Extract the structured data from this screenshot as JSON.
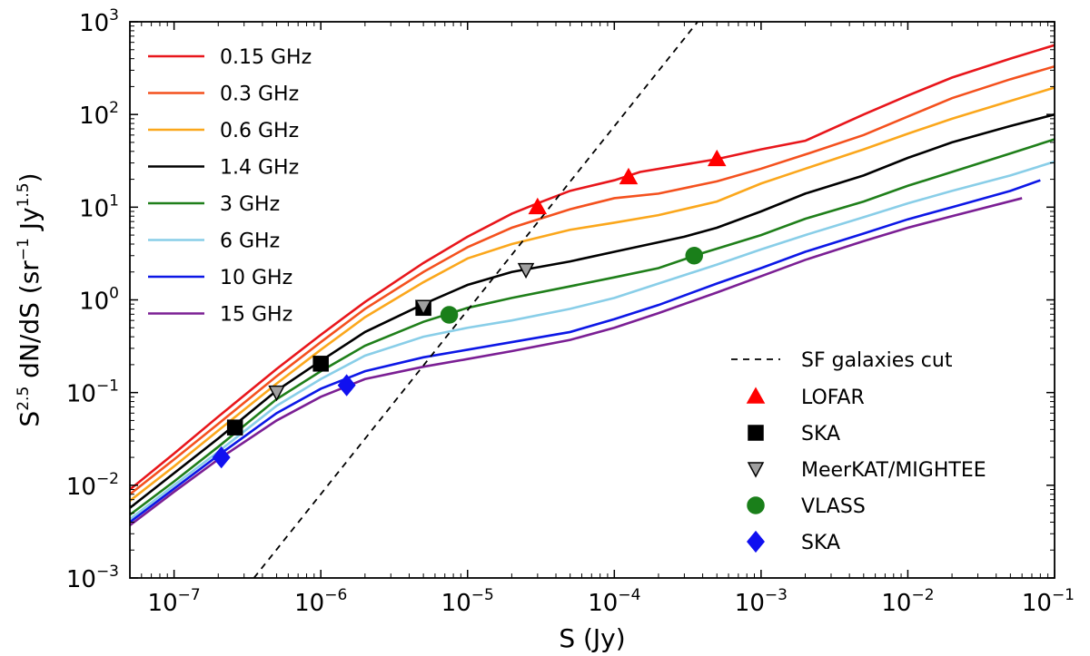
{
  "chart_data": {
    "type": "line",
    "scale": {
      "x": "log",
      "y": "log"
    },
    "xlabel": "S (Jy)",
    "ylabel": {
      "prefix": "S",
      "prefix_exp": "2.5",
      "mid": " dN/dS (sr",
      "unit_exp1": "−1",
      "mid2": " Jy",
      "unit_exp2": "1.5",
      "suffix": ")"
    },
    "xlim": [
      5e-08,
      0.1
    ],
    "ylim": [
      0.001,
      1000
    ],
    "x_ticks": [
      {
        "value": 1e-07,
        "base": "10",
        "exp": "−7"
      },
      {
        "value": 1e-06,
        "base": "10",
        "exp": "−6"
      },
      {
        "value": 1e-05,
        "base": "10",
        "exp": "−5"
      },
      {
        "value": 0.0001,
        "base": "10",
        "exp": "−4"
      },
      {
        "value": 0.001,
        "base": "10",
        "exp": "−3"
      },
      {
        "value": 0.01,
        "base": "10",
        "exp": "−2"
      },
      {
        "value": 0.1,
        "base": "10",
        "exp": "−1"
      }
    ],
    "y_ticks": [
      {
        "value": 0.001,
        "base": "10",
        "exp": "−3"
      },
      {
        "value": 0.01,
        "base": "10",
        "exp": "−2"
      },
      {
        "value": 0.1,
        "base": "10",
        "exp": "−1"
      },
      {
        "value": 1,
        "base": "10",
        "exp": "0"
      },
      {
        "value": 10,
        "base": "10",
        "exp": "1"
      },
      {
        "value": 100,
        "base": "10",
        "exp": "2"
      },
      {
        "value": 1000,
        "base": "10",
        "exp": "3"
      }
    ],
    "series": [
      {
        "name": "0.15 GHz",
        "color": "#e8161b",
        "x": [
          5e-08,
          1e-07,
          2e-07,
          5e-07,
          1e-06,
          2e-06,
          5e-06,
          1e-05,
          2e-05,
          3e-05,
          5e-05,
          0.0001,
          0.00015,
          0.0005,
          0.001,
          0.002,
          0.005,
          0.01,
          0.02,
          0.05,
          0.1
        ],
        "y": [
          0.009,
          0.022,
          0.055,
          0.18,
          0.42,
          0.95,
          2.5,
          4.8,
          8.5,
          11,
          15,
          19.5,
          24,
          33,
          42,
          52,
          100,
          160,
          250,
          400,
          560
        ]
      },
      {
        "name": "0.3 GHz",
        "color": "#f4511e",
        "x": [
          5e-08,
          1e-07,
          2e-07,
          5e-07,
          1e-06,
          2e-06,
          5e-06,
          1e-05,
          2e-05,
          5e-05,
          0.0001,
          0.0002,
          0.0005,
          0.001,
          0.002,
          0.005,
          0.01,
          0.02,
          0.05,
          0.1
        ],
        "y": [
          0.008,
          0.019,
          0.046,
          0.15,
          0.35,
          0.8,
          2.0,
          3.7,
          6.0,
          9.5,
          12.5,
          14,
          19,
          26,
          37,
          60,
          95,
          150,
          240,
          330
        ]
      },
      {
        "name": "0.6 GHz",
        "color": "#fba71c",
        "x": [
          5e-08,
          1e-07,
          2e-07,
          5e-07,
          1e-06,
          2e-06,
          5e-06,
          1e-05,
          2e-05,
          5e-05,
          0.0001,
          0.0002,
          0.0005,
          0.001,
          0.002,
          0.005,
          0.01,
          0.02,
          0.05,
          0.1
        ],
        "y": [
          0.0068,
          0.016,
          0.039,
          0.125,
          0.29,
          0.65,
          1.55,
          2.8,
          4.0,
          5.7,
          6.8,
          8.2,
          11.5,
          18,
          26,
          42,
          62,
          90,
          140,
          195
        ]
      },
      {
        "name": "1.4 GHz",
        "color": "#000000",
        "x": [
          5e-08,
          1e-07,
          2e-07,
          5e-07,
          1e-06,
          2e-06,
          5e-06,
          1e-05,
          2e-05,
          5e-05,
          0.0001,
          0.0003,
          0.0005,
          0.001,
          0.002,
          0.005,
          0.01,
          0.02,
          0.05,
          0.1
        ],
        "y": [
          0.0057,
          0.0135,
          0.032,
          0.105,
          0.22,
          0.45,
          0.9,
          1.45,
          2.0,
          2.6,
          3.3,
          4.8,
          6.0,
          9,
          14,
          22,
          34,
          50,
          75,
          100
        ]
      },
      {
        "name": "3 GHz",
        "color": "#1f7f1a",
        "x": [
          5e-08,
          1e-07,
          2e-07,
          5e-07,
          1e-06,
          2e-06,
          5e-06,
          1e-05,
          2e-05,
          5e-05,
          0.0001,
          0.0002,
          0.0004,
          0.001,
          0.002,
          0.005,
          0.01,
          0.02,
          0.05,
          0.1
        ],
        "y": [
          0.0048,
          0.011,
          0.026,
          0.085,
          0.17,
          0.32,
          0.58,
          0.82,
          1.05,
          1.4,
          1.75,
          2.2,
          3.2,
          5.0,
          7.5,
          11.5,
          17,
          24,
          38,
          54
        ]
      },
      {
        "name": "6 GHz",
        "color": "#89cee8",
        "x": [
          5e-08,
          1e-07,
          2e-07,
          5e-07,
          1e-06,
          2e-06,
          5e-06,
          1e-05,
          2e-05,
          5e-05,
          0.0001,
          0.0002,
          0.0005,
          0.001,
          0.002,
          0.005,
          0.01,
          0.02,
          0.05,
          0.1
        ],
        "y": [
          0.0043,
          0.01,
          0.023,
          0.072,
          0.14,
          0.25,
          0.4,
          0.5,
          0.6,
          0.8,
          1.05,
          1.5,
          2.4,
          3.5,
          5.0,
          7.8,
          11,
          15,
          22,
          31
        ]
      },
      {
        "name": "10 GHz",
        "color": "#0c17e6",
        "x": [
          5e-08,
          1e-07,
          2e-07,
          5e-07,
          1e-06,
          2e-06,
          5e-06,
          1e-05,
          2e-05,
          5e-05,
          0.0001,
          0.0002,
          0.0005,
          0.001,
          0.002,
          0.005,
          0.01,
          0.02,
          0.05,
          0.08
        ],
        "y": [
          0.004,
          0.0092,
          0.021,
          0.06,
          0.11,
          0.17,
          0.24,
          0.29,
          0.35,
          0.45,
          0.62,
          0.88,
          1.5,
          2.2,
          3.3,
          5.2,
          7.4,
          10,
          15,
          19.5
        ]
      },
      {
        "name": "15 GHz",
        "color": "#7b1f94",
        "x": [
          5e-08,
          1e-07,
          2e-07,
          5e-07,
          1e-06,
          2e-06,
          5e-06,
          1e-05,
          2e-05,
          5e-05,
          0.0001,
          0.0002,
          0.0005,
          0.001,
          0.002,
          0.005,
          0.01,
          0.02,
          0.06
        ],
        "y": [
          0.0037,
          0.0085,
          0.019,
          0.05,
          0.09,
          0.14,
          0.19,
          0.23,
          0.28,
          0.37,
          0.5,
          0.72,
          1.2,
          1.8,
          2.7,
          4.3,
          6.0,
          8.0,
          12.5
        ]
      }
    ],
    "cut_line": {
      "name": "SF galaxies cut",
      "color": "#000000",
      "x": [
        3.5e-07,
        0.00037
      ],
      "y": [
        0.001,
        1000
      ]
    },
    "markers": [
      {
        "name": "LOFAR",
        "shape": "triangle-up",
        "fill": "#ff0000",
        "stroke": "#ff0000",
        "points": [
          {
            "x": 3e-05,
            "y": 10
          },
          {
            "x": 0.000125,
            "y": 21
          },
          {
            "x": 0.0005,
            "y": 33
          }
        ]
      },
      {
        "name": "SKA",
        "shape": "square",
        "fill": "#000000",
        "stroke": "#000000",
        "points": [
          {
            "x": 2.6e-07,
            "y": 0.042
          },
          {
            "x": 1e-06,
            "y": 0.205
          },
          {
            "x": 5e-06,
            "y": 0.82
          }
        ]
      },
      {
        "name": "MeerKAT/MIGHTEE",
        "shape": "triangle-down",
        "fill": "#a0a0a0",
        "stroke": "#000000",
        "points": [
          {
            "x": 5e-07,
            "y": 0.1
          },
          {
            "x": 5e-06,
            "y": 0.84
          },
          {
            "x": 2.5e-05,
            "y": 2.1
          }
        ]
      },
      {
        "name": "VLASS",
        "shape": "circle",
        "fill": "#1a7f1a",
        "stroke": "#1a7f1a",
        "points": [
          {
            "x": 7.5e-06,
            "y": 0.69
          },
          {
            "x": 0.00035,
            "y": 3.0
          }
        ]
      },
      {
        "name": "SKA",
        "shape": "diamond",
        "fill": "#1010f0",
        "stroke": "#1010f0",
        "points": [
          {
            "x": 2.1e-07,
            "y": 0.02
          },
          {
            "x": 1.5e-06,
            "y": 0.12
          }
        ]
      }
    ]
  }
}
